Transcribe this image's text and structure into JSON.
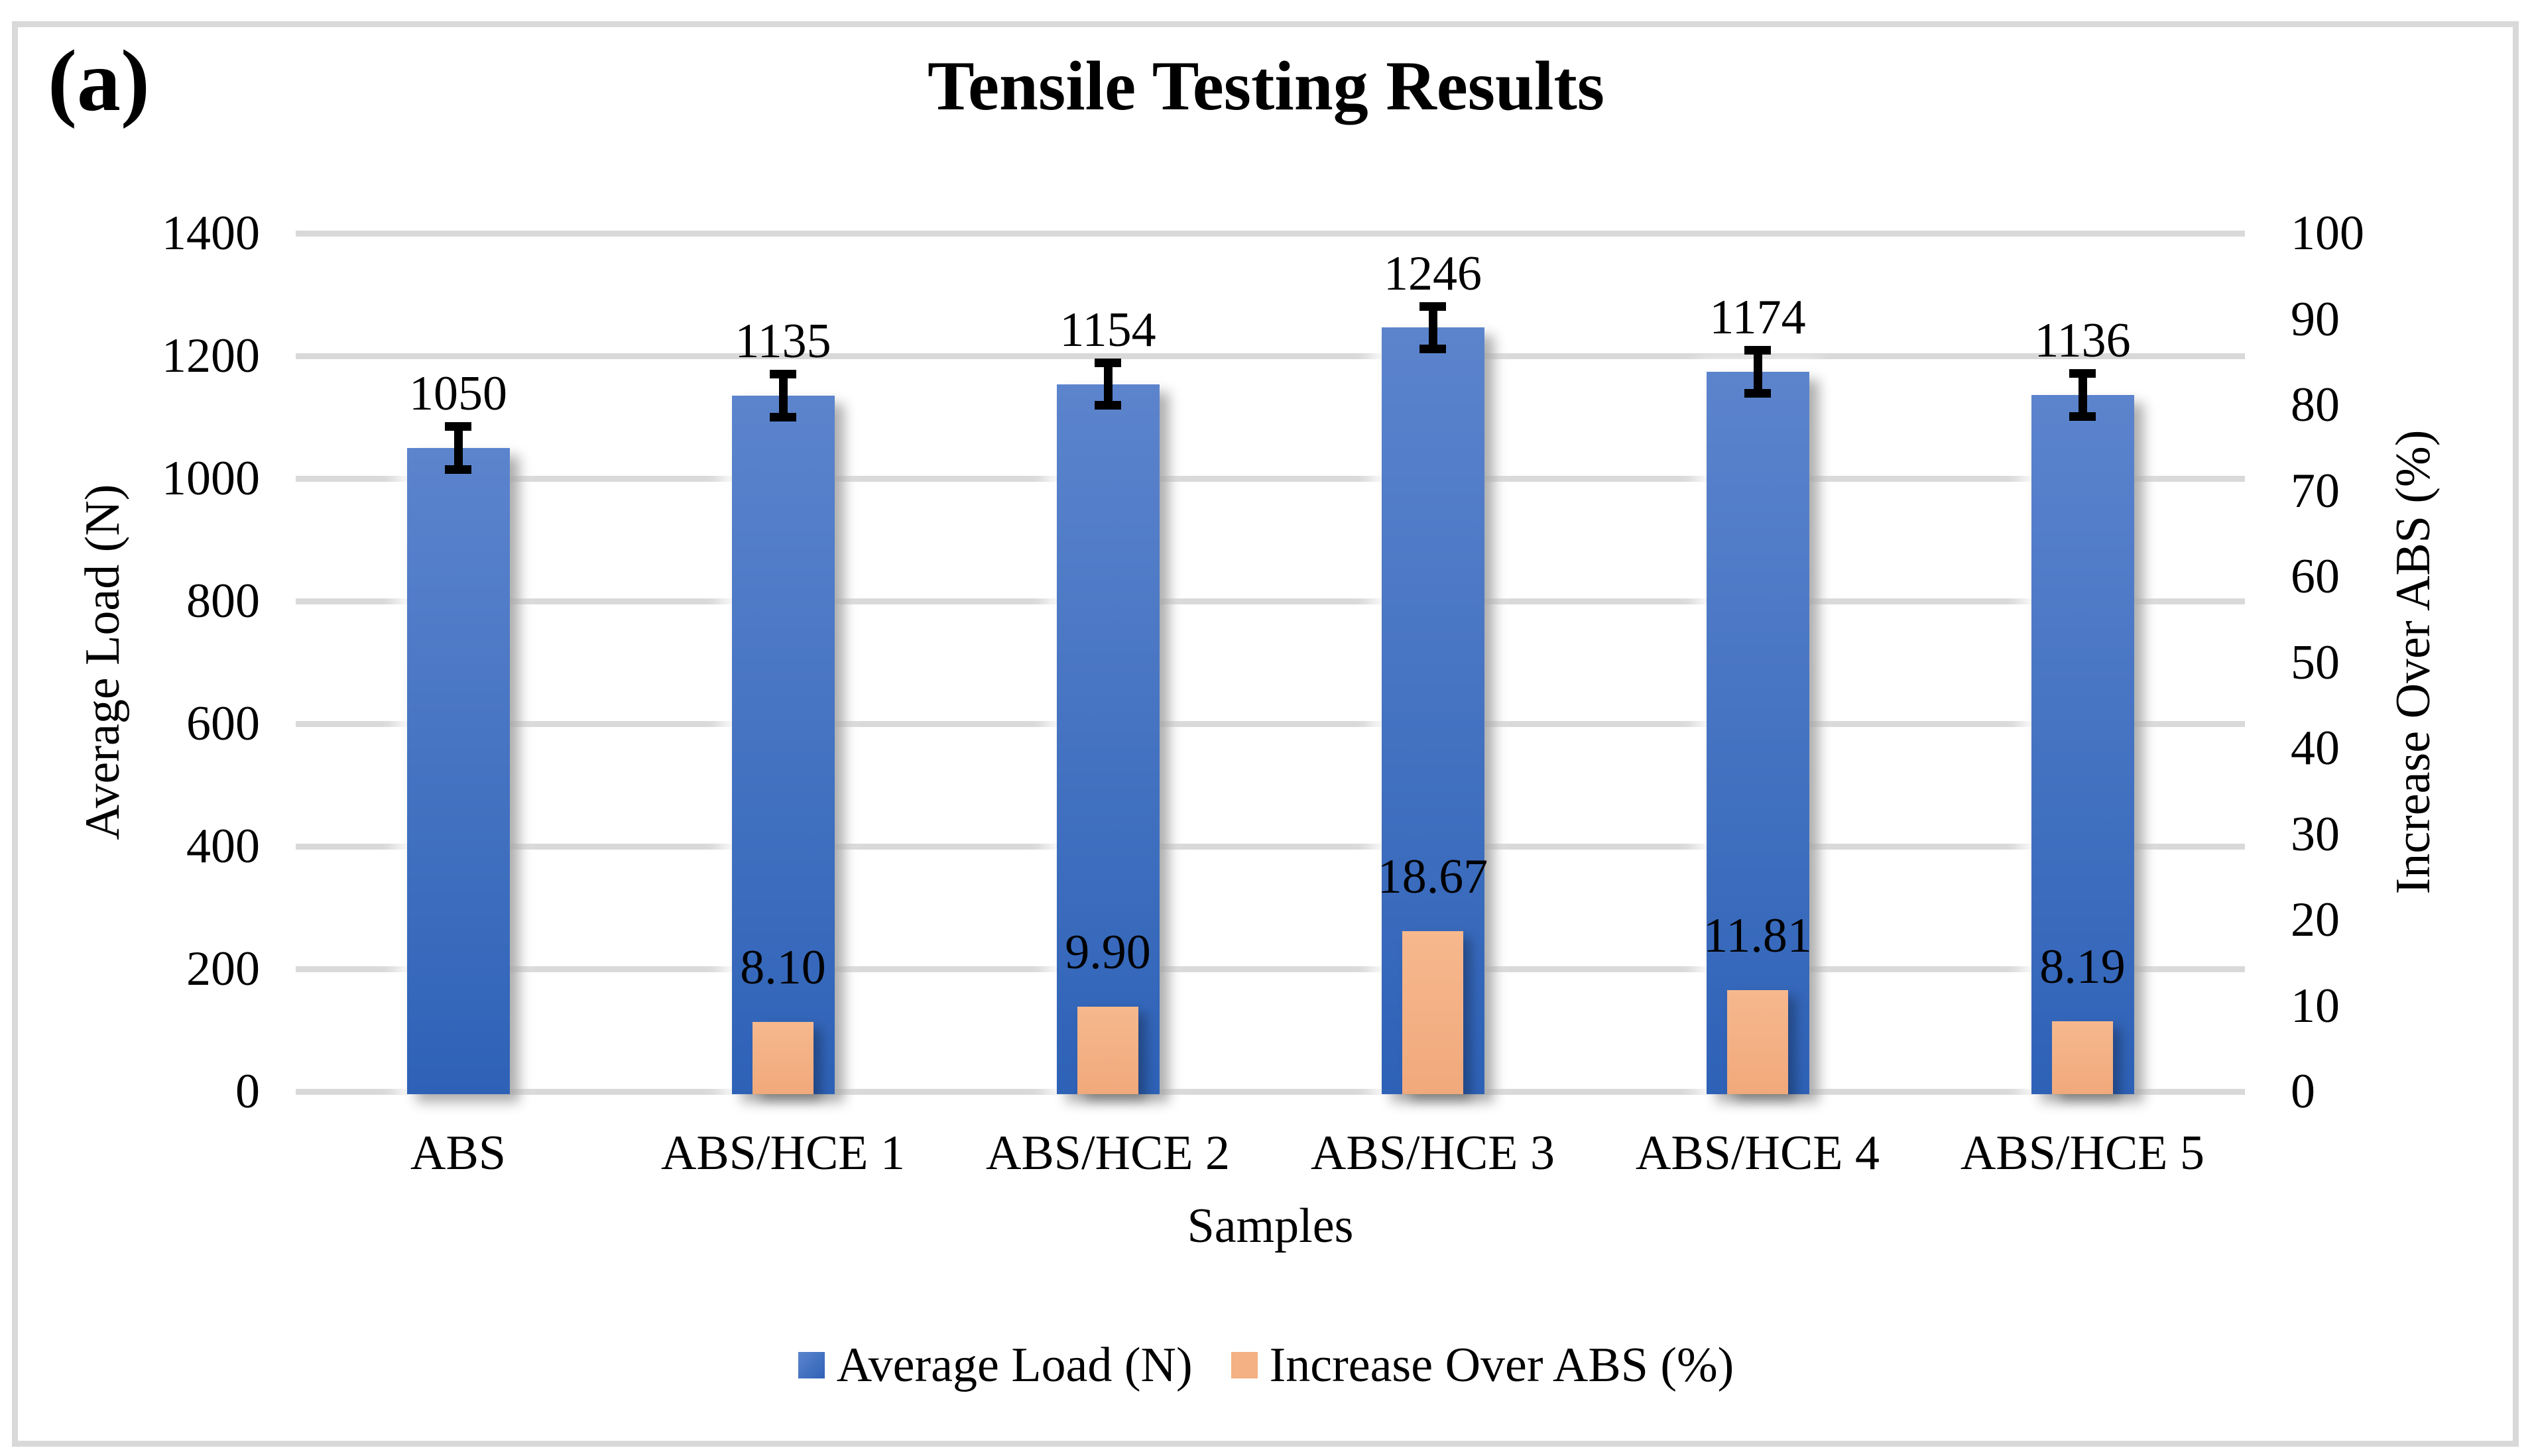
{
  "panel_label": "(a)",
  "title": "Tensile Testing Results",
  "chart_data": {
    "type": "bar",
    "title": "Tensile Testing Results",
    "categories": [
      "ABS",
      "ABS/HCE 1",
      "ABS/HCE 2",
      "ABS/HCE 3",
      "ABS/HCE 4",
      "ABS/HCE 5"
    ],
    "series": [
      {
        "name": "Average Load (N)",
        "axis": "left",
        "color": "#4472C4",
        "values": [
          1050,
          1135,
          1154,
          1246,
          1174,
          1136
        ],
        "labels": [
          "1050",
          "1135",
          "1154",
          "1246",
          "1174",
          "1136"
        ],
        "error_bars": [
          30,
          30,
          30,
          30,
          30,
          30
        ]
      },
      {
        "name": "Increase Over ABS (%)",
        "axis": "right",
        "color": "#F4B183",
        "values": [
          null,
          8.1,
          9.9,
          18.67,
          11.81,
          8.19
        ],
        "labels": [
          "",
          "8.10",
          "9.90",
          "18.67",
          "11.81",
          "8.19"
        ]
      }
    ],
    "xlabel": "Samples",
    "left_axis": {
      "title": "Average Load (N)",
      "min": 0,
      "max": 1400,
      "step": 200,
      "ticks": [
        "0",
        "200",
        "400",
        "600",
        "800",
        "1000",
        "1200",
        "1400"
      ]
    },
    "right_axis": {
      "title": "Increase Over ABS (%)",
      "min": 0,
      "max": 100,
      "step": 10,
      "ticks": [
        "0",
        "10",
        "20",
        "30",
        "40",
        "50",
        "60",
        "70",
        "80",
        "90",
        "100"
      ]
    },
    "grid": true,
    "legend_position": "bottom",
    "legend": [
      {
        "label": "Average Load (N)",
        "color": "#4472C4"
      },
      {
        "label": "Increase Over ABS (%)",
        "color": "#F4B183"
      }
    ]
  },
  "colors": {
    "bar_blue_top": "#5C84CD",
    "bar_blue_bottom": "#2E62B7",
    "bar_orange": "#F4B183",
    "gridline": "#D9D9D9",
    "frame_border": "#D9D9D9",
    "error_bar": "#000000",
    "text": "#000000"
  }
}
